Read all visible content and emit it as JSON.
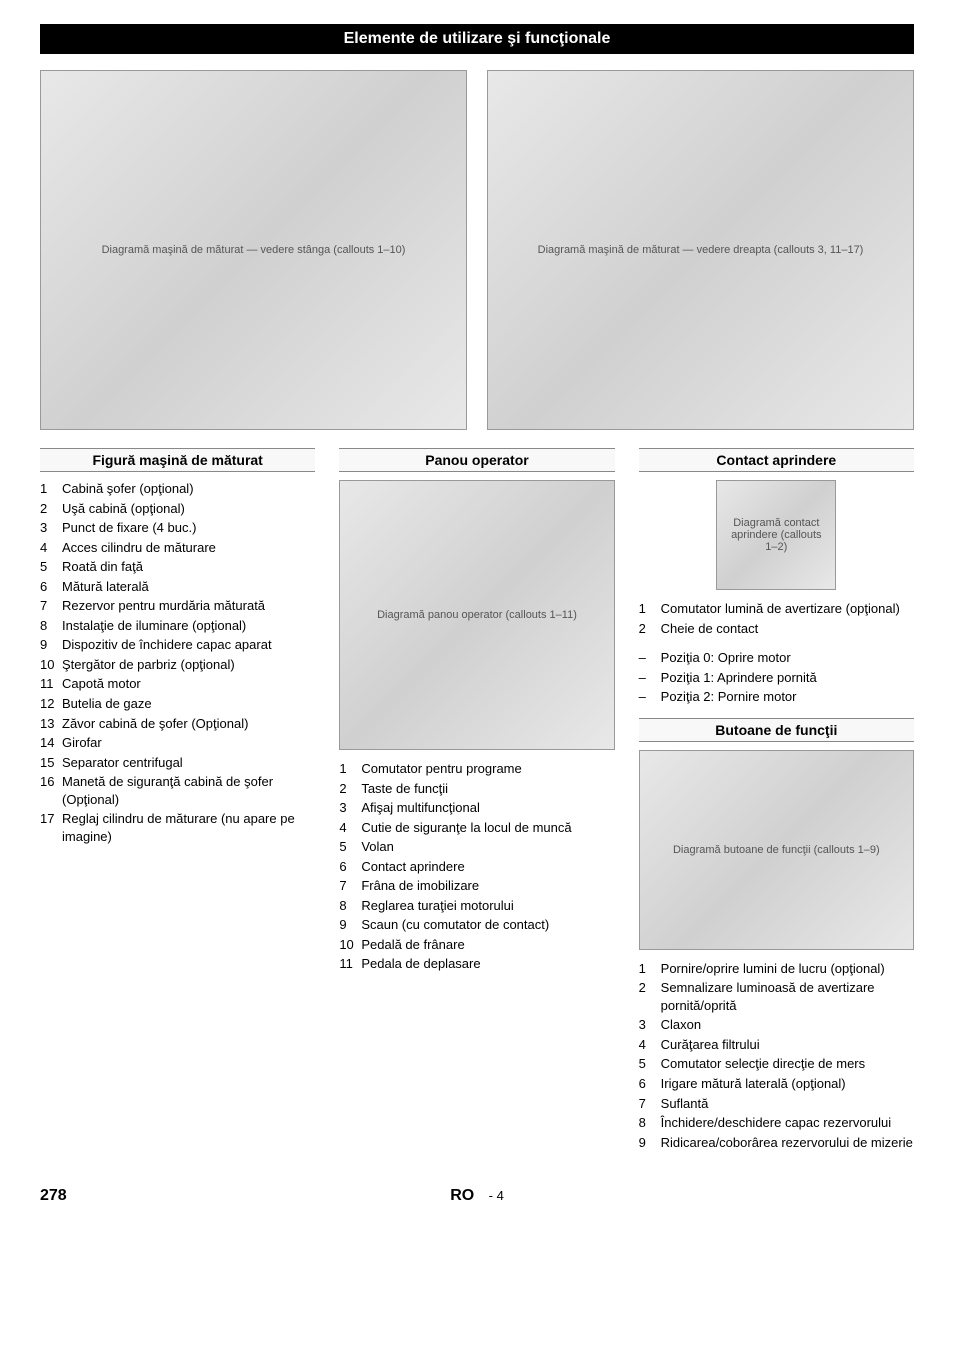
{
  "title_bar": "Elemente de utilizare şi funcţionale",
  "hero": {
    "left_diagram_caption": "Diagramă maşină de măturat — vedere stânga (callouts 1–10)",
    "right_diagram_caption": "Diagramă maşină de măturat — vedere dreapta (callouts 3, 11–17)"
  },
  "col1": {
    "title": "Figură maşină de măturat",
    "items": [
      {
        "n": "1",
        "t": "Cabină şofer (opţional)"
      },
      {
        "n": "2",
        "t": "Uşă cabină (opţional)"
      },
      {
        "n": "3",
        "t": "Punct de fixare (4 buc.)"
      },
      {
        "n": "4",
        "t": "Acces cilindru de măturare"
      },
      {
        "n": "5",
        "t": "Roată din faţă"
      },
      {
        "n": "6",
        "t": "Mătură laterală"
      },
      {
        "n": "7",
        "t": "Rezervor pentru murdăria măturată"
      },
      {
        "n": "8",
        "t": "Instalaţie de iluminare (opţional)"
      },
      {
        "n": "9",
        "t": "Dispozitiv de închidere capac aparat"
      },
      {
        "n": "10",
        "t": "Ştergător de parbriz (opţional)"
      },
      {
        "n": "11",
        "t": "Capotă motor"
      },
      {
        "n": "12",
        "t": "Butelia de gaze"
      },
      {
        "n": "13",
        "t": "Zăvor cabină de şofer (Opţional)"
      },
      {
        "n": "14",
        "t": "Girofar"
      },
      {
        "n": "15",
        "t": "Separator centrifugal"
      },
      {
        "n": "16",
        "t": "Manetă de siguranţă cabină de şofer (Opţional)"
      },
      {
        "n": "17",
        "t": "Reglaj cilindru de măturare (nu apare pe imagine)"
      }
    ]
  },
  "col2": {
    "title": "Panou operator",
    "diagram_caption": "Diagramă panou operator (callouts 1–11)",
    "items": [
      {
        "n": "1",
        "t": "Comutator pentru programe"
      },
      {
        "n": "2",
        "t": "Taste de funcţii"
      },
      {
        "n": "3",
        "t": "Afişaj multifuncţional"
      },
      {
        "n": "4",
        "t": "Cutie de siguranţe la locul de muncă"
      },
      {
        "n": "5",
        "t": "Volan"
      },
      {
        "n": "6",
        "t": "Contact aprindere"
      },
      {
        "n": "7",
        "t": "Frâna de imobilizare"
      },
      {
        "n": "8",
        "t": "Reglarea turaţiei motorului"
      },
      {
        "n": "9",
        "t": "Scaun (cu comutator de contact)"
      },
      {
        "n": "10",
        "t": "Pedală de frânare"
      },
      {
        "n": "11",
        "t": "Pedala de deplasare"
      }
    ]
  },
  "col3a": {
    "title": "Contact aprindere",
    "diagram_caption": "Diagramă contact aprindere (callouts 1–2)",
    "items": [
      {
        "n": "1",
        "t": "Comutator lumină de avertizare (opţional)"
      },
      {
        "n": "2",
        "t": "Cheie de contact"
      }
    ],
    "bullets": [
      "Poziţia 0: Oprire motor",
      "Poziţia 1: Aprindere pornită",
      "Poziţia 2: Pornire motor"
    ]
  },
  "col3b": {
    "title": "Butoane de funcţii",
    "diagram_caption": "Diagramă butoane de funcţii (callouts 1–9)",
    "items": [
      {
        "n": "1",
        "t": "Pornire/oprire lumini de lucru (opţional)"
      },
      {
        "n": "2",
        "t": "Semnalizare luminoasă de avertizare pornită/oprită"
      },
      {
        "n": "3",
        "t": "Claxon"
      },
      {
        "n": "4",
        "t": "Curăţarea filtrului"
      },
      {
        "n": "5",
        "t": "Comutator selecţie direcţie de mers"
      },
      {
        "n": "6",
        "t": "Irigare mătură laterală (opţional)"
      },
      {
        "n": "7",
        "t": "Suflantă"
      },
      {
        "n": "8",
        "t": "Închidere/deschidere capac rezervorului"
      },
      {
        "n": "9",
        "t": "Ridicarea/coborârea rezervorului de mizerie"
      }
    ]
  },
  "footer": {
    "page": "278",
    "lang": "RO",
    "sub": "- 4"
  }
}
